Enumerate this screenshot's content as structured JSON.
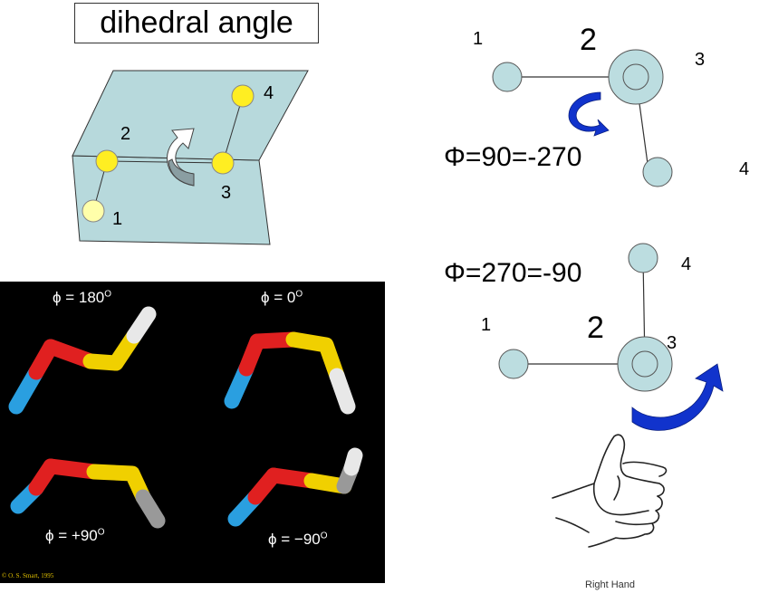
{
  "title": "dihedral angle",
  "plane_diagram": {
    "atoms": [
      "1",
      "2",
      "3",
      "4"
    ]
  },
  "newman_top": {
    "labels": {
      "a1": "1",
      "a2": "2",
      "a3": "3",
      "a4": "4"
    },
    "phi": "Φ=90=-270"
  },
  "newman_bottom": {
    "labels": {
      "a1": "1",
      "a2": "2",
      "a3": "3",
      "a4": "4"
    },
    "phi": "Φ=270=-90"
  },
  "photo": {
    "captions": {
      "tl": "ϕ = 180",
      "tl_sup": "O",
      "tr": "ϕ = 0",
      "tr_sup": "O",
      "bl": "ϕ = +90",
      "bl_sup": "O",
      "br": "ϕ = −90",
      "br_sup": "O"
    },
    "credit": "© O. S. Smart, 1995"
  },
  "right_hand_caption": "Right Hand",
  "colors": {
    "plane_fill": "#b7d9dc",
    "atom_yellow": "#ffee22",
    "atom_pale": "#ffffaa",
    "newman_atom": "#bcdde0",
    "arrow_blue": "#1133cc"
  }
}
